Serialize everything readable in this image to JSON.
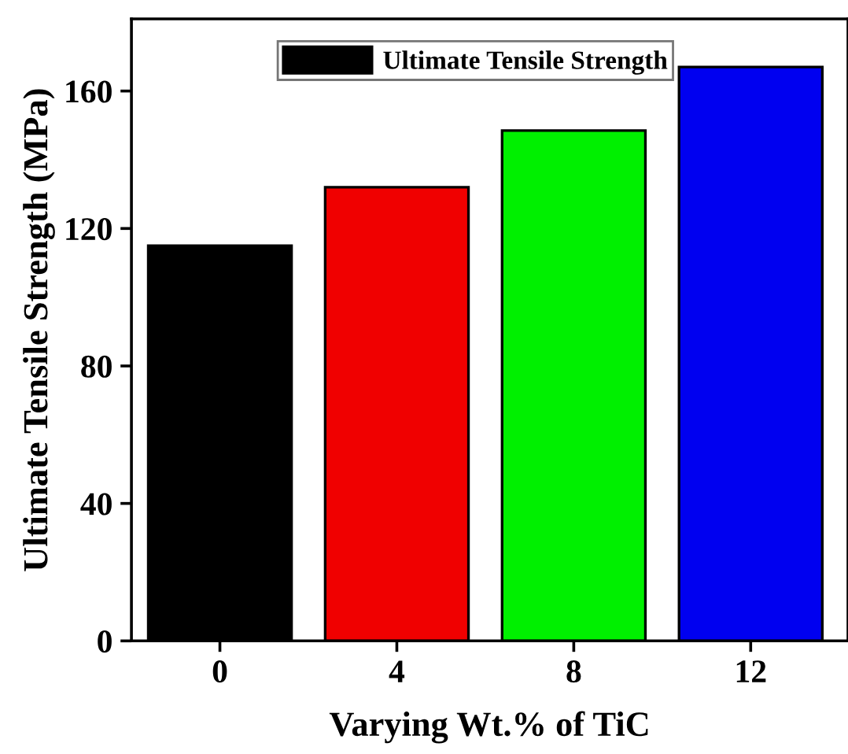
{
  "chart_data": {
    "type": "bar",
    "xlabel": "Varying Wt.% of TiC",
    "ylabel": "Ultimate Tensile Strength (MPa)",
    "categories": [
      "0",
      "4",
      "8",
      "12"
    ],
    "series": [
      {
        "name": "Ultimate Tensile Strength",
        "color": "#000000",
        "colors": [
          "#000000",
          "#f00000",
          "#00f000",
          "#0000f0"
        ],
        "values": [
          115,
          132,
          148.5,
          167
        ]
      }
    ],
    "ylim": [
      0,
      181
    ],
    "yticks": [
      0,
      40,
      80,
      120,
      160
    ],
    "grid": false,
    "legend": "top"
  }
}
